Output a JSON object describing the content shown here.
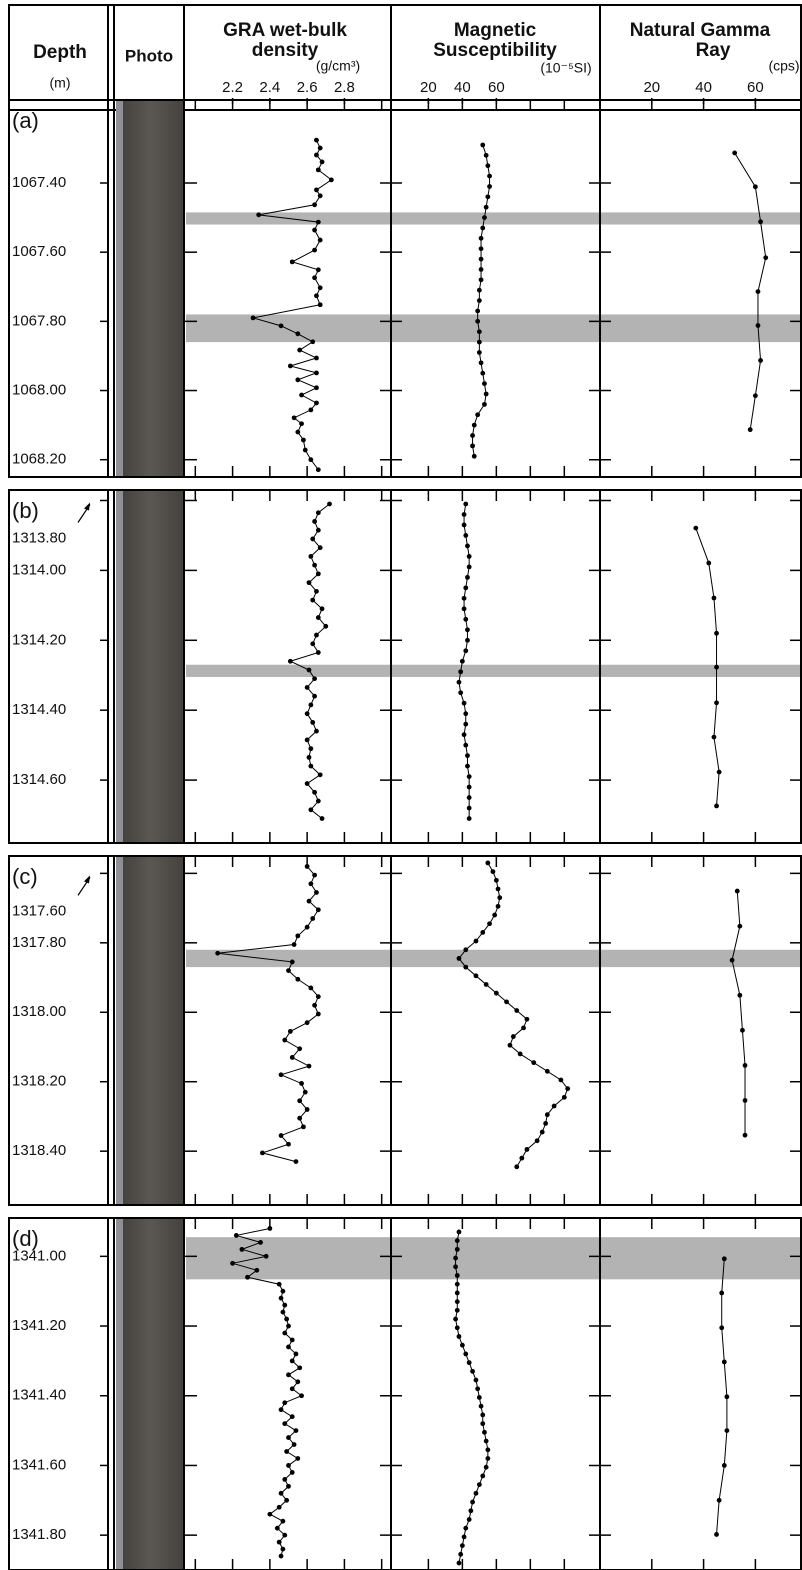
{
  "chart_data": {
    "type": "line",
    "markers": true,
    "depth_header": {
      "title": "Depth",
      "unit": "(m)"
    },
    "photo_header": "Photo",
    "tracks": [
      {
        "title_lines": [
          "GRA wet-bulk",
          "density"
        ],
        "unit": "(g/cm³)",
        "xlim": [
          1.95,
          3.05
        ],
        "xticks": [
          2.2,
          2.4,
          2.6,
          2.8
        ],
        "xticks_minor": [
          2.0,
          3.0
        ],
        "color": "#000000"
      },
      {
        "title_lines": [
          "Magnetic",
          "Susceptibility"
        ],
        "unit": "(10⁻⁵SI)",
        "xlim": [
          -2,
          121
        ],
        "xticks": [
          20,
          40,
          60
        ],
        "xticks_minor": [
          80,
          100
        ],
        "color": "#000000"
      },
      {
        "title_lines": [
          "Natural Gamma",
          "Ray"
        ],
        "unit": "(cps)",
        "xlim": [
          0,
          78
        ],
        "xticks": [
          20,
          40,
          60
        ],
        "xticks_minor": [],
        "color": "#000000"
      }
    ],
    "panels": [
      {
        "label": "(a)",
        "ylim": [
          1067.16,
          1068.25
        ],
        "yticks": [
          {
            "value": 1067.4,
            "label": "1067.40"
          },
          {
            "value": 1067.6,
            "label": "1067.60"
          },
          {
            "value": 1067.8,
            "label": "1067.80"
          },
          {
            "value": 1068.0,
            "label": "1068.00"
          },
          {
            "value": 1068.2,
            "label": "1068.20"
          }
        ],
        "highlight_intervals": [
          [
            1067.485,
            1067.52
          ],
          [
            1067.78,
            1067.86
          ]
        ],
        "series": [
          {
            "depth": [
              1067.276,
              1067.299,
              1067.319,
              1067.339,
              1067.362,
              1067.391,
              1067.42,
              1067.437,
              1067.463,
              1067.492,
              1067.513,
              1067.536,
              1067.565,
              1067.594,
              1067.628,
              1067.651,
              1067.674,
              1067.703,
              1067.726,
              1067.752,
              1067.79,
              1067.813,
              1067.836,
              1067.859,
              1067.883,
              1067.906,
              1067.929,
              1067.949,
              1067.969,
              1067.992,
              1068.013,
              1068.036,
              1068.056,
              1068.079,
              1068.096,
              1068.12,
              1068.143,
              1068.172,
              1068.2,
              1068.229
            ],
            "values": [
              2.65,
              2.67,
              2.65,
              2.68,
              2.66,
              2.73,
              2.65,
              2.67,
              2.64,
              2.34,
              2.66,
              2.64,
              2.67,
              2.64,
              2.52,
              2.66,
              2.64,
              2.67,
              2.65,
              2.67,
              2.31,
              2.46,
              2.55,
              2.63,
              2.56,
              2.65,
              2.51,
              2.65,
              2.55,
              2.65,
              2.57,
              2.65,
              2.62,
              2.53,
              2.57,
              2.55,
              2.58,
              2.59,
              2.62,
              2.66
            ]
          },
          {
            "depth": [
              1067.29,
              1067.32,
              1067.35,
              1067.38,
              1067.41,
              1067.44,
              1067.47,
              1067.5,
              1067.53,
              1067.56,
              1067.59,
              1067.62,
              1067.65,
              1067.68,
              1067.71,
              1067.74,
              1067.77,
              1067.8,
              1067.83,
              1067.86,
              1067.89,
              1067.92,
              1067.95,
              1067.98,
              1068.01,
              1068.04,
              1068.07,
              1068.1,
              1068.13,
              1068.16,
              1068.19
            ],
            "values": [
              52,
              54,
              55,
              56,
              56,
              55,
              54,
              53,
              52,
              51,
              51,
              51,
              51,
              51,
              50,
              50,
              49,
              49,
              50,
              50,
              50,
              51,
              52,
              53,
              54,
              53,
              49,
              47,
              46,
              46,
              47
            ]
          },
          {
            "depth": [
              1067.313,
              1067.411,
              1067.512,
              1067.616,
              1067.714,
              1067.812,
              1067.913,
              1068.015,
              1068.113
            ],
            "values": [
              52,
              60,
              62,
              64,
              61,
              61,
              62,
              60,
              58
            ]
          }
        ]
      },
      {
        "label": "(b)",
        "ylim": [
          1313.77,
          1314.78
        ],
        "yticks": [
          {
            "value": 1313.8,
            "label": "1313.80"
          },
          {
            "value": 1314.0,
            "label": "1314.00"
          },
          {
            "value": 1314.2,
            "label": "1314.20"
          },
          {
            "value": 1314.4,
            "label": "1314.40"
          },
          {
            "value": 1314.6,
            "label": "1314.60"
          }
        ],
        "highlight_intervals": [
          [
            1314.27,
            1314.305
          ]
        ],
        "series": [
          {
            "depth": [
              1313.81,
              1313.835,
              1313.86,
              1313.885,
              1313.91,
              1313.935,
              1313.96,
              1313.985,
              1314.01,
              1314.035,
              1314.06,
              1314.085,
              1314.11,
              1314.135,
              1314.16,
              1314.185,
              1314.21,
              1314.235,
              1314.26,
              1314.285,
              1314.31,
              1314.335,
              1314.36,
              1314.385,
              1314.41,
              1314.435,
              1314.46,
              1314.485,
              1314.51,
              1314.535,
              1314.56,
              1314.585,
              1314.61,
              1314.635,
              1314.66,
              1314.685,
              1314.71
            ],
            "values": [
              2.72,
              2.66,
              2.64,
              2.66,
              2.63,
              2.67,
              2.62,
              2.64,
              2.66,
              2.61,
              2.65,
              2.63,
              2.68,
              2.66,
              2.7,
              2.65,
              2.63,
              2.66,
              2.51,
              2.61,
              2.64,
              2.6,
              2.64,
              2.62,
              2.6,
              2.63,
              2.65,
              2.6,
              2.62,
              2.61,
              2.62,
              2.67,
              2.6,
              2.64,
              2.66,
              2.62,
              2.68
            ]
          },
          {
            "depth": [
              1313.81,
              1313.84,
              1313.87,
              1313.9,
              1313.93,
              1313.96,
              1313.99,
              1314.02,
              1314.05,
              1314.08,
              1314.11,
              1314.14,
              1314.17,
              1314.2,
              1314.23,
              1314.26,
              1314.29,
              1314.32,
              1314.35,
              1314.38,
              1314.41,
              1314.44,
              1314.47,
              1314.5,
              1314.53,
              1314.56,
              1314.59,
              1314.62,
              1314.65,
              1314.68,
              1314.71
            ],
            "values": [
              42,
              41,
              41,
              42,
              43,
              44,
              44,
              43,
              42,
              41,
              41,
              42,
              43,
              43,
              42,
              40,
              39,
              38,
              39,
              41,
              42,
              42,
              41,
              42,
              43,
              43,
              44,
              44,
              44,
              44,
              44
            ]
          },
          {
            "depth": [
              1313.879,
              1313.979,
              1314.079,
              1314.18,
              1314.277,
              1314.379,
              1314.477,
              1314.577,
              1314.674
            ],
            "values": [
              37,
              42,
              44,
              45,
              45,
              45,
              44,
              46,
              45
            ]
          }
        ]
      },
      {
        "label": "(c)",
        "ylim": [
          1317.55,
          1318.555
        ],
        "yticks": [
          {
            "value": 1317.6,
            "label": "1317.60"
          },
          {
            "value": 1317.8,
            "label": "1317.80"
          },
          {
            "value": 1318.0,
            "label": "1318.00"
          },
          {
            "value": 1318.2,
            "label": "1318.20"
          },
          {
            "value": 1318.4,
            "label": "1318.40"
          }
        ],
        "highlight_intervals": [
          [
            1317.82,
            1317.87
          ]
        ],
        "series": [
          {
            "depth": [
              1317.58,
              1317.605,
              1317.63,
              1317.655,
              1317.68,
              1317.705,
              1317.73,
              1317.755,
              1317.78,
              1317.805,
              1317.83,
              1317.855,
              1317.88,
              1317.905,
              1317.93,
              1317.955,
              1317.98,
              1318.005,
              1318.03,
              1318.055,
              1318.08,
              1318.105,
              1318.13,
              1318.155,
              1318.18,
              1318.205,
              1318.23,
              1318.255,
              1318.28,
              1318.305,
              1318.33,
              1318.355,
              1318.38,
              1318.405,
              1318.43
            ],
            "values": [
              2.6,
              2.64,
              2.62,
              2.65,
              2.61,
              2.66,
              2.63,
              2.6,
              2.55,
              2.53,
              2.12,
              2.52,
              2.5,
              2.55,
              2.62,
              2.66,
              2.64,
              2.66,
              2.6,
              2.51,
              2.48,
              2.56,
              2.52,
              2.61,
              2.46,
              2.57,
              2.59,
              2.56,
              2.6,
              2.56,
              2.58,
              2.46,
              2.5,
              2.36,
              2.54
            ]
          },
          {
            "depth": [
              1317.57,
              1317.595,
              1317.62,
              1317.645,
              1317.67,
              1317.695,
              1317.72,
              1317.745,
              1317.77,
              1317.795,
              1317.82,
              1317.845,
              1317.87,
              1317.895,
              1317.92,
              1317.945,
              1317.97,
              1317.995,
              1318.02,
              1318.045,
              1318.07,
              1318.095,
              1318.12,
              1318.145,
              1318.17,
              1318.195,
              1318.22,
              1318.245,
              1318.27,
              1318.295,
              1318.32,
              1318.345,
              1318.37,
              1318.395,
              1318.42,
              1318.445
            ],
            "values": [
              55,
              58,
              60,
              61,
              62,
              61,
              59,
              56,
              52,
              48,
              42,
              38,
              42,
              48,
              54,
              60,
              66,
              72,
              78,
              76,
              70,
              68,
              74,
              82,
              90,
              98,
              102,
              100,
              94,
              90,
              89,
              87,
              84,
              78,
              75,
              72
            ]
          },
          {
            "depth": [
              1317.651,
              1317.752,
              1317.85,
              1317.951,
              1318.052,
              1318.153,
              1318.254,
              1318.354
            ],
            "values": [
              53,
              54,
              51,
              54,
              55,
              56,
              56,
              56
            ]
          }
        ]
      },
      {
        "label": "(d)",
        "ylim": [
          1340.89,
          1341.9
        ],
        "yticks": [
          {
            "value": 1341.0,
            "label": "1341.00"
          },
          {
            "value": 1341.2,
            "label": "1341.20"
          },
          {
            "value": 1341.4,
            "label": "1341.40"
          },
          {
            "value": 1341.6,
            "label": "1341.60"
          },
          {
            "value": 1341.8,
            "label": "1341.80"
          }
        ],
        "highlight_intervals": [
          [
            1340.945,
            1341.066
          ]
        ],
        "series": [
          {
            "depth": [
              1340.92,
              1340.94,
              1340.96,
              1340.98,
              1341.0,
              1341.02,
              1341.04,
              1341.06,
              1341.08,
              1341.1,
              1341.12,
              1341.14,
              1341.16,
              1341.18,
              1341.2,
              1341.22,
              1341.24,
              1341.26,
              1341.28,
              1341.3,
              1341.32,
              1341.34,
              1341.36,
              1341.38,
              1341.4,
              1341.42,
              1341.44,
              1341.46,
              1341.48,
              1341.5,
              1341.52,
              1341.54,
              1341.56,
              1341.58,
              1341.6,
              1341.62,
              1341.64,
              1341.66,
              1341.68,
              1341.7,
              1341.72,
              1341.74,
              1341.76,
              1341.78,
              1341.8,
              1341.82,
              1341.84,
              1341.86
            ],
            "values": [
              2.4,
              2.22,
              2.35,
              2.25,
              2.38,
              2.2,
              2.33,
              2.28,
              2.45,
              2.47,
              2.46,
              2.48,
              2.47,
              2.49,
              2.5,
              2.48,
              2.52,
              2.5,
              2.54,
              2.52,
              2.56,
              2.5,
              2.55,
              2.52,
              2.57,
              2.48,
              2.46,
              2.52,
              2.48,
              2.54,
              2.5,
              2.53,
              2.49,
              2.55,
              2.5,
              2.52,
              2.48,
              2.5,
              2.46,
              2.49,
              2.45,
              2.4,
              2.47,
              2.44,
              2.48,
              2.45,
              2.47,
              2.46
            ]
          },
          {
            "depth": [
              1340.93,
              1340.955,
              1340.98,
              1341.005,
              1341.03,
              1341.055,
              1341.08,
              1341.105,
              1341.13,
              1341.155,
              1341.18,
              1341.205,
              1341.23,
              1341.255,
              1341.28,
              1341.305,
              1341.33,
              1341.355,
              1341.38,
              1341.405,
              1341.43,
              1341.455,
              1341.48,
              1341.505,
              1341.53,
              1341.555,
              1341.58,
              1341.605,
              1341.63,
              1341.655,
              1341.68,
              1341.705,
              1341.73,
              1341.755,
              1341.78,
              1341.805,
              1341.83,
              1341.855,
              1341.88
            ],
            "values": [
              38,
              37,
              37,
              36,
              36,
              37,
              37,
              37,
              37,
              37,
              36,
              37,
              38,
              40,
              42,
              44,
              46,
              48,
              49,
              50,
              51,
              52,
              52,
              53,
              54,
              55,
              55,
              54,
              52,
              50,
              48,
              46,
              45,
              44,
              42,
              41,
              40,
              39,
              38
            ]
          },
          {
            "depth": [
              1341.007,
              1341.105,
              1341.205,
              1341.303,
              1341.403,
              1341.5,
              1341.6,
              1341.7,
              1341.798
            ],
            "values": [
              48,
              47,
              47,
              48,
              49,
              49,
              48,
              46,
              45
            ]
          }
        ]
      }
    ]
  }
}
